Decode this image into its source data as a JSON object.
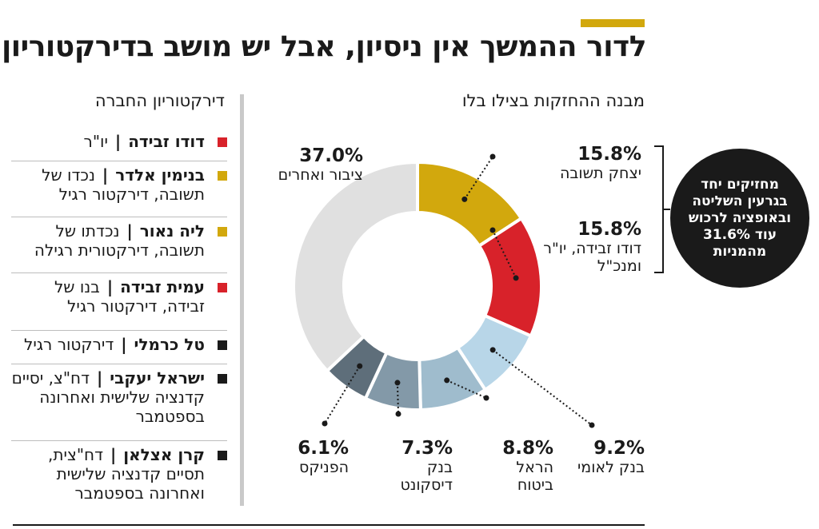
{
  "header": {
    "title": "לדור ההמשך אין ניסיון, אבל יש מושב בדירקטוריון",
    "accent_color": "#d2a80d"
  },
  "chart_heading": "מבנה ההחזקות בצילו בלו",
  "board_heading": "דירקטוריון החברה",
  "board": [
    {
      "name": "דודו זבידה",
      "role": "יו\"ר",
      "color": "#d8222a"
    },
    {
      "name": "בנימין אלדר",
      "role": "נכדו של תשובה, דירקטור רגיל",
      "color": "#d2a80d"
    },
    {
      "name": "ליה נאור",
      "role": "נכדתו של תשובה, דירקטורית רגילה",
      "color": "#d2a80d"
    },
    {
      "name": "עמית זבידה",
      "role": "בנו של זבידה, דירקטור רגיל",
      "color": "#d8222a"
    },
    {
      "name": "טל כרמלי",
      "role": "דירקטור רגיל",
      "color": "#1a1a1a"
    },
    {
      "name": "ישראל יעקבי",
      "role": "דח\"צ, יסיים קדנציה שלישית ואחרונה בספטמבר",
      "color": "#1a1a1a"
    },
    {
      "name": "קרן אצלאן",
      "role": "דח\"צית, תסיים קדנציה שלישית ואחרונה בספטמבר",
      "color": "#1a1a1a"
    }
  ],
  "chart_data": {
    "type": "donut",
    "title": "מבנה ההחזקות בצילו בלו",
    "unit": "%",
    "slices": [
      {
        "label": "יצחק תשובה",
        "value": 15.8,
        "pct_text": "15.8%",
        "color": "#d2a80d"
      },
      {
        "label": "דודו זבידה, יו\"ר ומנכ\"ל",
        "value": 15.8,
        "pct_text": "15.8%",
        "color": "#d8222a"
      },
      {
        "label": "בנק לאומי",
        "value": 9.2,
        "pct_text": "9.2%",
        "color": "#b8d6e8"
      },
      {
        "label": "הראל ביטוח",
        "value": 8.8,
        "pct_text": "8.8%",
        "color": "#9fbccd"
      },
      {
        "label": "בנק דיסקונט",
        "value": 7.3,
        "pct_text": "7.3%",
        "color": "#8399a8"
      },
      {
        "label": "הפניקס",
        "value": 6.1,
        "pct_text": "6.1%",
        "color": "#5e6e7a"
      },
      {
        "label": "ציבור ואחרים",
        "value": 37.0,
        "pct_text": "37.0%",
        "color": "#e0e0e0"
      }
    ],
    "callout": "מחזיקים יחד בגרעין השליטה ובאופציה לרכוש עוד 31.6% מהמניות"
  }
}
